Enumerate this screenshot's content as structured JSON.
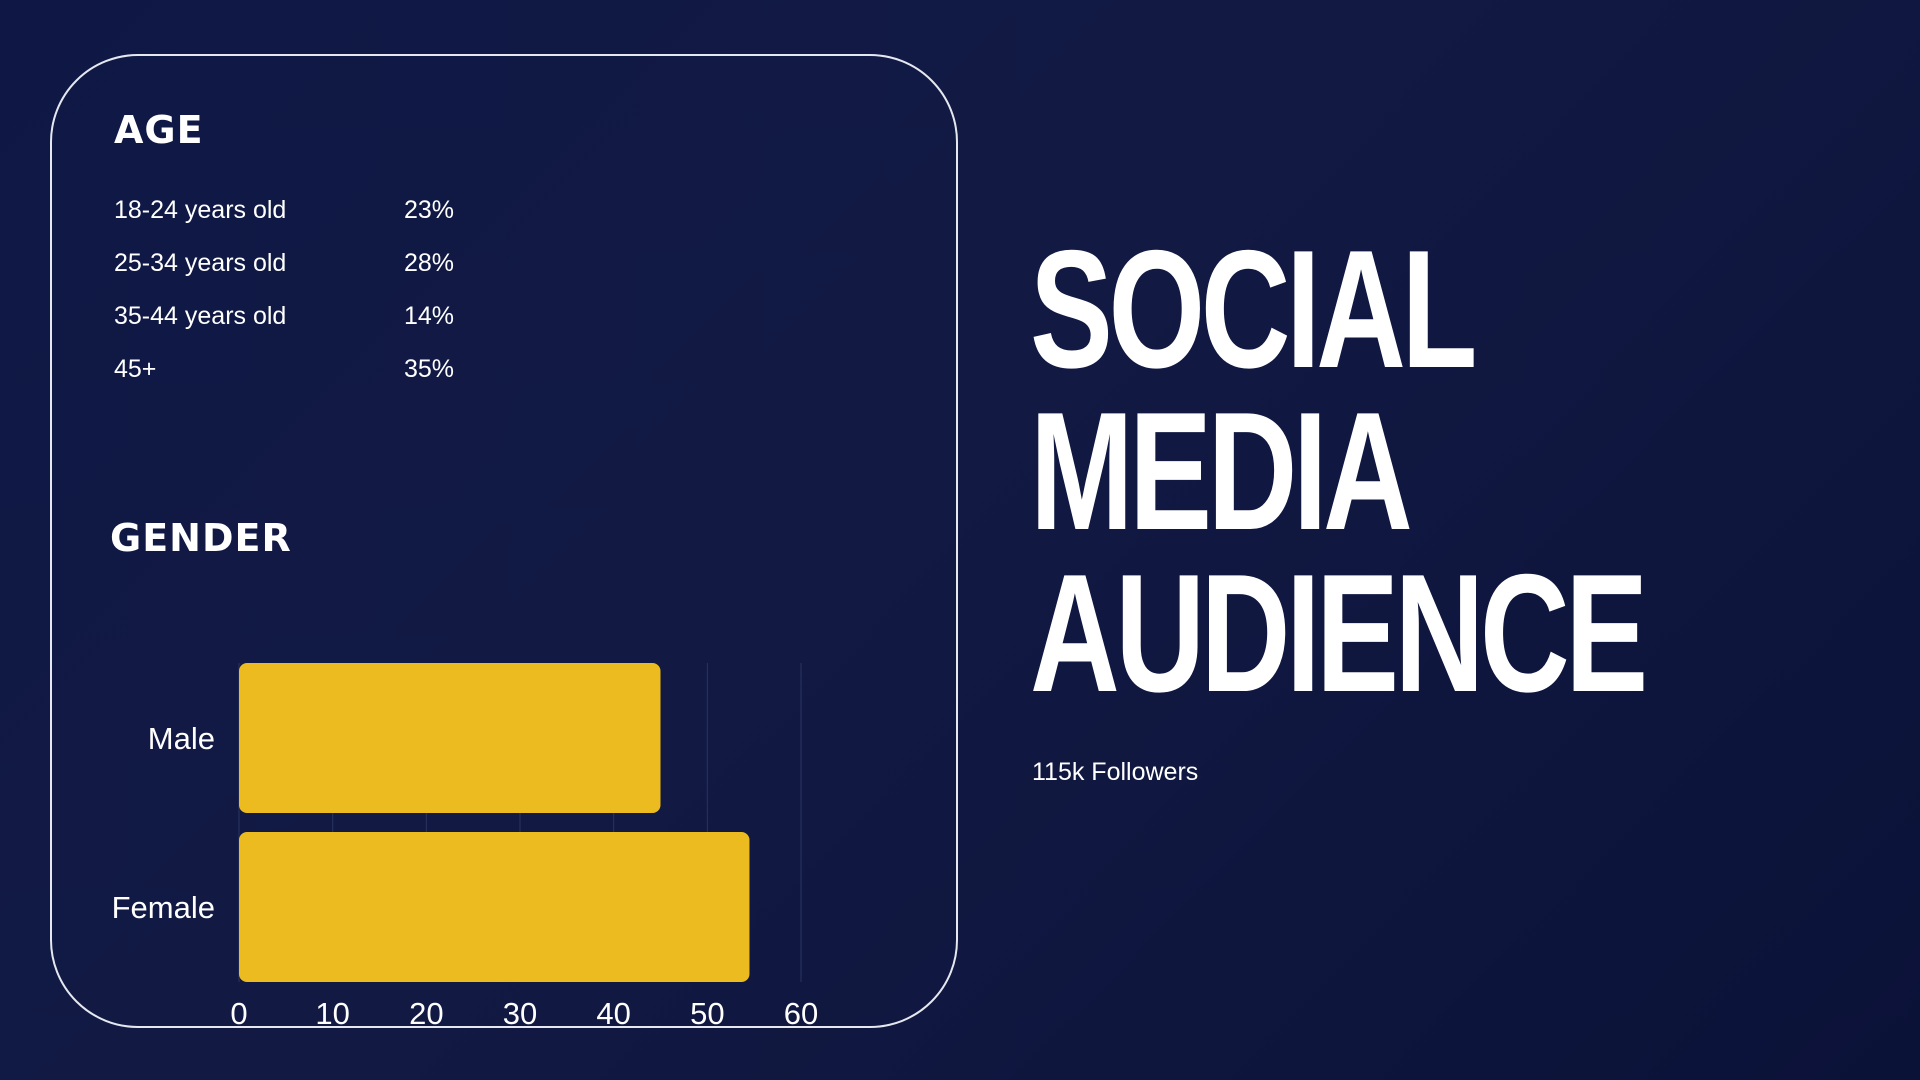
{
  "age": {
    "title": "AGE",
    "rows": [
      {
        "label": "18-24 years old",
        "value": "23%"
      },
      {
        "label": "25-34 years old",
        "value": "28%"
      },
      {
        "label": "35-44 years old",
        "value": "14%"
      },
      {
        "label": "45+",
        "value": "35%"
      }
    ]
  },
  "gender": {
    "title": "GENDER"
  },
  "headline": {
    "line1": "SOCIAL",
    "line2": "MEDIA",
    "line3": "AUDIENCE"
  },
  "followers": "115k Followers",
  "colors": {
    "bar": "#ecbb20",
    "background": "#111a45",
    "text": "#ffffff",
    "grid": "#2a3360"
  },
  "chart_data": {
    "type": "bar",
    "orientation": "horizontal",
    "categories": [
      "Male",
      "Female"
    ],
    "values": [
      45,
      54.5
    ],
    "xlim": [
      0,
      60
    ],
    "xticks": [
      0,
      10,
      20,
      30,
      40,
      50,
      60
    ],
    "title": "",
    "xlabel": "",
    "ylabel": "",
    "grid": true
  }
}
